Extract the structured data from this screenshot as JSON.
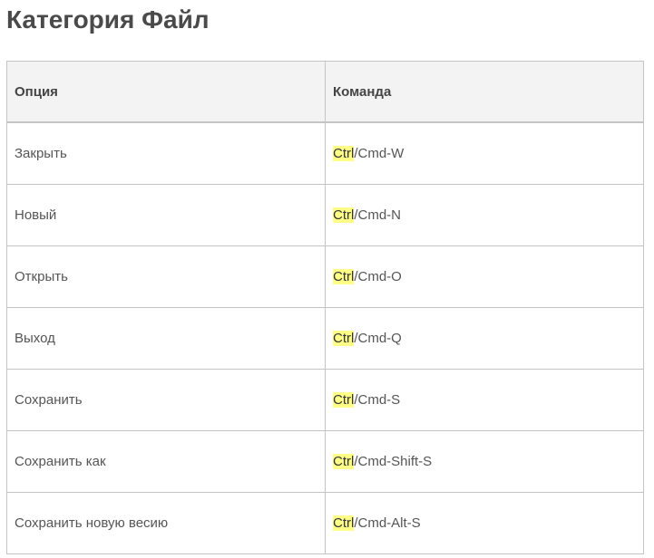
{
  "title": "Категория Файл",
  "table": {
    "headers": [
      "Опция",
      "Команда"
    ],
    "highlight_color": "#ffff88",
    "rows": [
      {
        "option": "Закрыть",
        "key": "Ctrl",
        "rest": "/Cmd-W"
      },
      {
        "option": "Новый",
        "key": "Ctrl",
        "rest": "/Cmd-N"
      },
      {
        "option": "Открыть",
        "key": "Ctrl",
        "rest": "/Cmd-O"
      },
      {
        "option": "Выход",
        "key": "Ctrl",
        "rest": "/Cmd-Q"
      },
      {
        "option": "Сохранить",
        "key": "Ctrl",
        "rest": "/Cmd-S"
      },
      {
        "option": "Сохранить как",
        "key": "Ctrl",
        "rest": "/Cmd-Shift-S"
      },
      {
        "option": "Сохранить новую весию",
        "key": "Ctrl",
        "rest": "/Cmd-Alt-S"
      }
    ]
  }
}
